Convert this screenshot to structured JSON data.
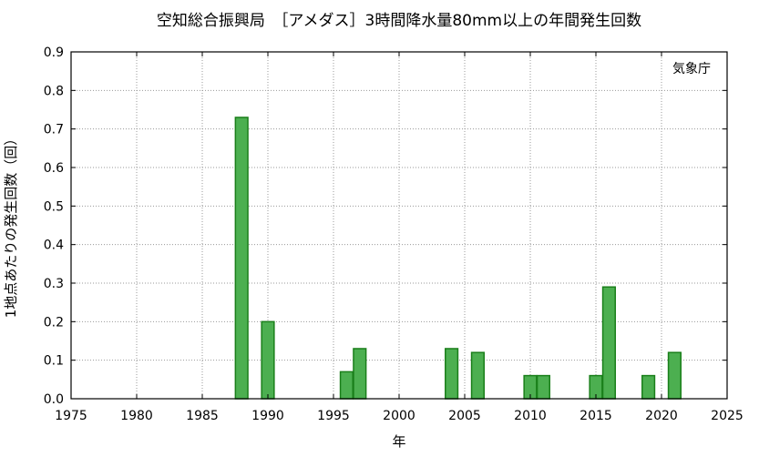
{
  "chart_data": {
    "type": "bar",
    "title": "空知総合振興局　［アメダス］3時間降水量80mm以上の年間発生回数",
    "xlabel": "年",
    "ylabel": "1地点あたりの発生回数（回）",
    "annotation": "気象庁",
    "xlim": [
      1975,
      2025
    ],
    "ylim": [
      0,
      0.9
    ],
    "xticks": [
      1975,
      1980,
      1985,
      1990,
      1995,
      2000,
      2005,
      2010,
      2015,
      2020,
      2025
    ],
    "yticks": [
      "0.0",
      "0.1",
      "0.2",
      "0.3",
      "0.4",
      "0.5",
      "0.6",
      "0.7",
      "0.8",
      "0.9"
    ],
    "grid": true,
    "bar_color": "#4caf50",
    "bar_edge_color": "#1a7f1a",
    "x": [
      1988,
      1990,
      1996,
      1997,
      2004,
      2006,
      2010,
      2011,
      2015,
      2016,
      2019,
      2021
    ],
    "values": [
      0.73,
      0.2,
      0.07,
      0.13,
      0.13,
      0.12,
      0.06,
      0.06,
      0.06,
      0.29,
      0.06,
      0.12
    ]
  }
}
